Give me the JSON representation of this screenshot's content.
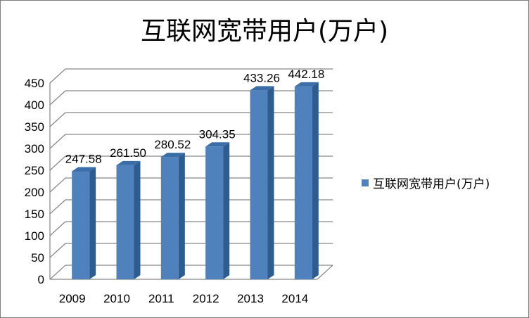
{
  "chart_data": {
    "type": "bar",
    "title": "互联网宽带用户(万户)",
    "categories": [
      "2009",
      "2010",
      "2011",
      "2012",
      "2013",
      "2014"
    ],
    "series": [
      {
        "name": "互联网宽带用户(万户)",
        "values": [
          247.58,
          261.5,
          280.52,
          304.35,
          433.26,
          442.18
        ],
        "labels": [
          "247.58",
          "261.50",
          "280.52",
          "304.35",
          "433.26",
          "442.18"
        ],
        "color": "#4f81bd"
      }
    ],
    "ylim": [
      0,
      450
    ],
    "yticks": [
      "0",
      "50",
      "100",
      "150",
      "200",
      "250",
      "300",
      "350",
      "400",
      "450"
    ],
    "xlabel": "",
    "ylabel": "",
    "grid": true,
    "legend": "right",
    "style": "3d-column"
  }
}
